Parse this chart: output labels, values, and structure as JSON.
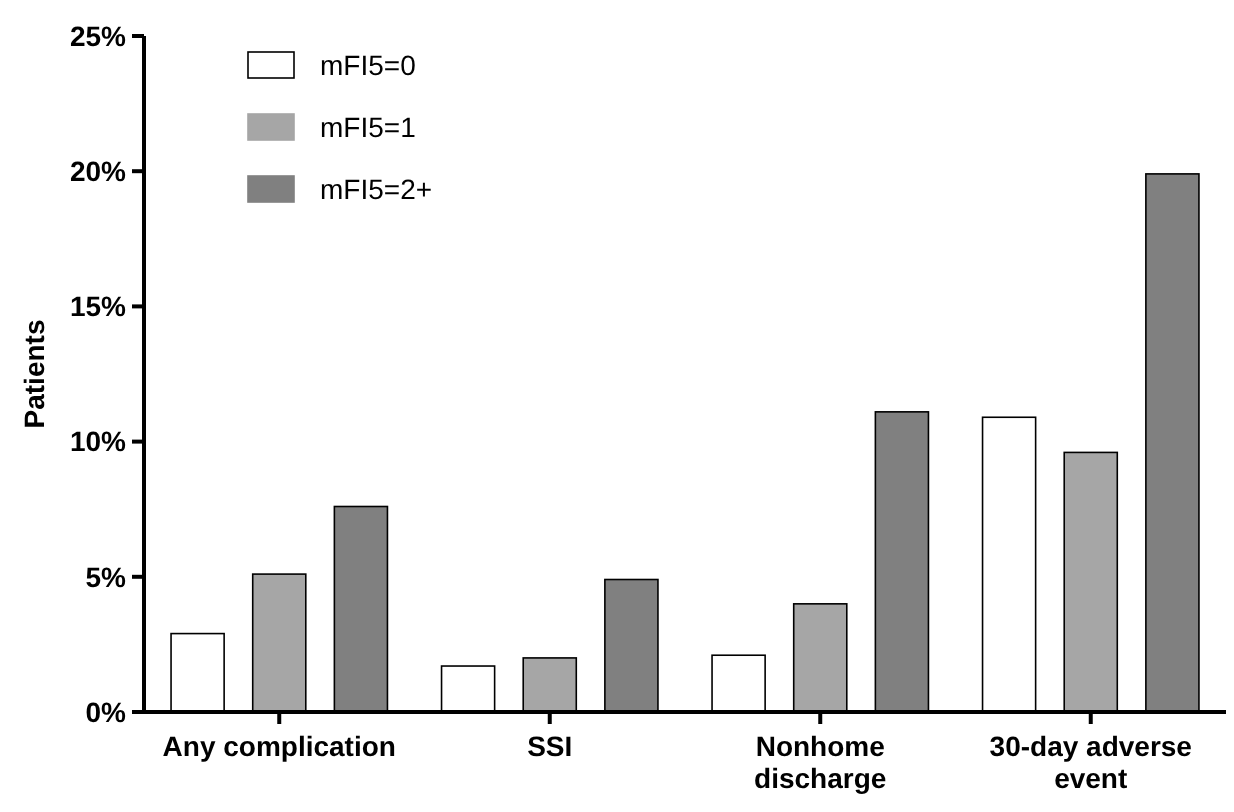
{
  "chart_data": {
    "type": "bar",
    "ylabel": "Patients",
    "categories": [
      "Any complication",
      "SSI",
      "Nonhome discharge",
      "30-day adverse event"
    ],
    "series": [
      {
        "name": "mFI5=0",
        "color": "#ffffff",
        "values": [
          2.9,
          1.7,
          2.1,
          10.9
        ]
      },
      {
        "name": "mFI5=1",
        "color": "#a6a6a6",
        "values": [
          5.1,
          2.0,
          4.0,
          9.6
        ]
      },
      {
        "name": "mFI5=2+",
        "color": "#808080",
        "values": [
          7.6,
          4.9,
          11.1,
          19.9
        ]
      }
    ],
    "ylim": [
      0,
      25
    ],
    "yticks": [
      {
        "value": 0,
        "label": "0%"
      },
      {
        "value": 5,
        "label": "5%"
      },
      {
        "value": 10,
        "label": "10%"
      },
      {
        "value": 15,
        "label": "15%"
      },
      {
        "value": 20,
        "label": "20%"
      },
      {
        "value": 25,
        "label": "25%"
      }
    ],
    "grid": false,
    "legend": "top left"
  }
}
